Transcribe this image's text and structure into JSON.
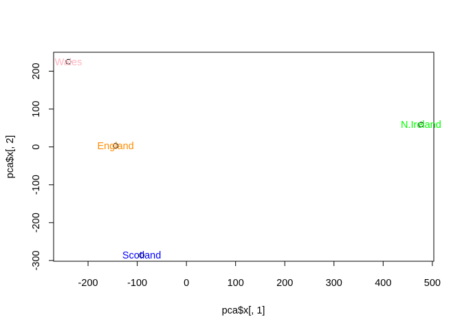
{
  "chart_data": {
    "type": "scatter",
    "title": "",
    "xlabel": "pca$x[, 1]",
    "ylabel": "pca$x[, 2]",
    "xlim": [
      -270,
      503
    ],
    "ylim": [
      -302,
      250
    ],
    "xticks": [
      -200,
      -100,
      0,
      100,
      200,
      300,
      400,
      500
    ],
    "yticks": [
      -300,
      -200,
      -100,
      0,
      100,
      200
    ],
    "grid": false,
    "points": [
      {
        "label": "England",
        "x": -144,
        "y": 3,
        "color": "#ff8c00"
      },
      {
        "label": "Wales",
        "x": -240,
        "y": 225,
        "color": "#ffb6c1"
      },
      {
        "label": "Scotland",
        "x": -91,
        "y": -286,
        "color": "#0000ff"
      },
      {
        "label": "N.Ireland",
        "x": 477,
        "y": 59,
        "color": "#00ff00"
      }
    ]
  }
}
